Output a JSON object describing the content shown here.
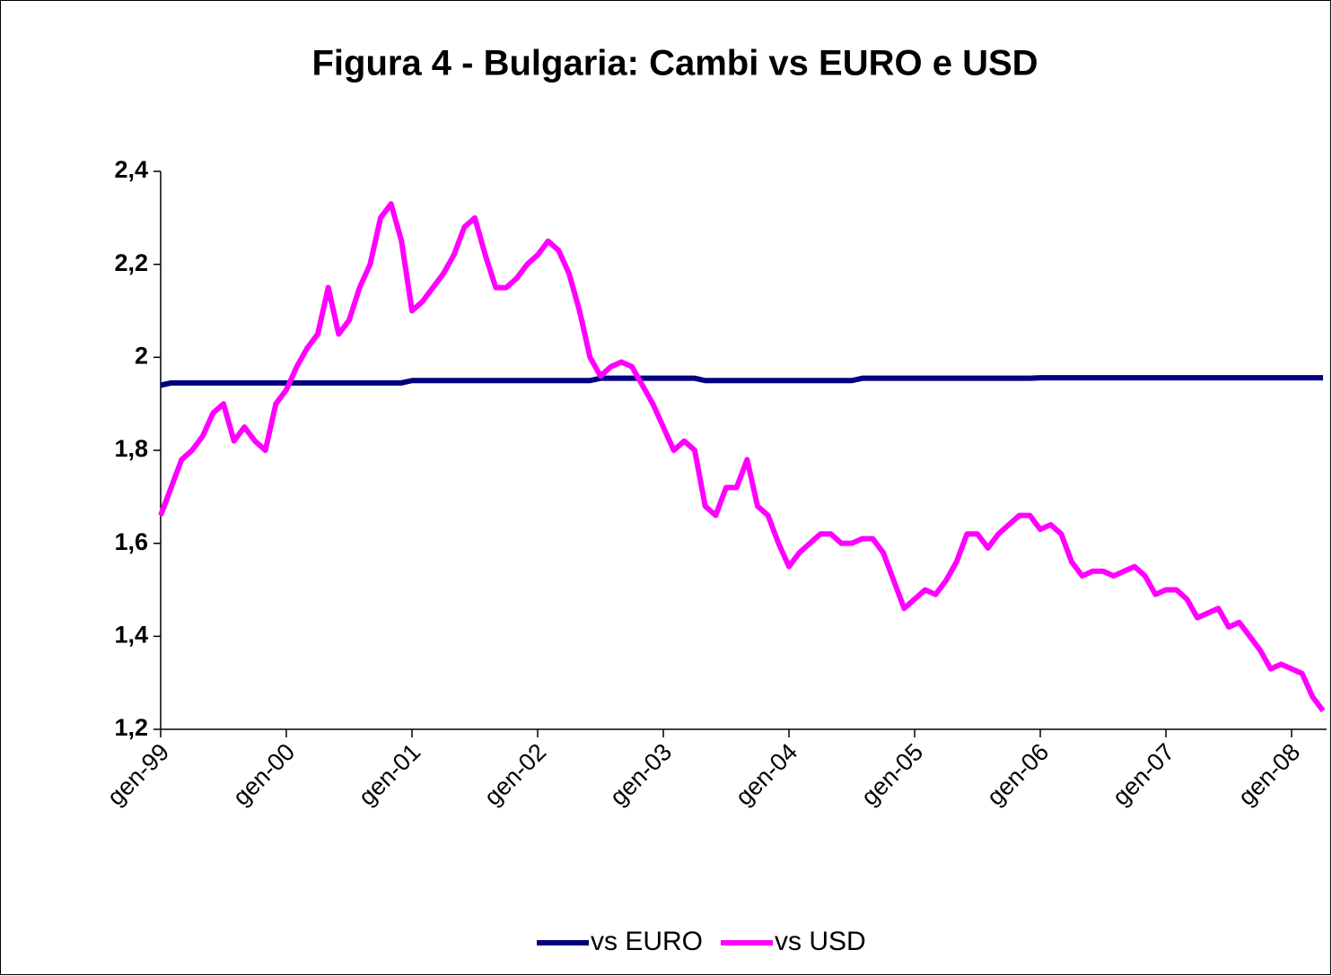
{
  "chart_data": {
    "type": "line",
    "title": "Figura 4 - Bulgaria: Cambi vs EURO e USD",
    "categories": [
      "gen-99",
      null,
      null,
      null,
      null,
      null,
      null,
      null,
      null,
      null,
      null,
      null,
      "gen-00",
      null,
      null,
      null,
      null,
      null,
      null,
      null,
      null,
      null,
      null,
      null,
      "gen-01",
      null,
      null,
      null,
      null,
      null,
      null,
      null,
      null,
      null,
      null,
      null,
      "gen-02",
      null,
      null,
      null,
      null,
      null,
      null,
      null,
      null,
      null,
      null,
      null,
      "gen-03",
      null,
      null,
      null,
      null,
      null,
      null,
      null,
      null,
      null,
      null,
      null,
      "gen-04",
      null,
      null,
      null,
      null,
      null,
      null,
      null,
      null,
      null,
      null,
      null,
      "gen-05",
      null,
      null,
      null,
      null,
      null,
      null,
      null,
      null,
      null,
      null,
      null,
      "gen-06",
      null,
      null,
      null,
      null,
      null,
      null,
      null,
      null,
      null,
      null,
      null,
      "gen-07",
      null,
      null,
      null,
      null,
      null,
      null,
      null,
      null,
      null,
      null,
      null,
      "gen-08",
      null,
      null,
      null
    ],
    "series": [
      {
        "name": "vs EURO",
        "color": "#000080",
        "values": [
          1.94,
          1.945,
          1.945,
          1.945,
          1.945,
          1.945,
          1.945,
          1.945,
          1.945,
          1.945,
          1.945,
          1.945,
          1.945,
          1.945,
          1.945,
          1.945,
          1.945,
          1.945,
          1.945,
          1.945,
          1.945,
          1.945,
          1.945,
          1.945,
          1.95,
          1.95,
          1.95,
          1.95,
          1.95,
          1.95,
          1.95,
          1.95,
          1.95,
          1.95,
          1.95,
          1.95,
          1.95,
          1.95,
          1.95,
          1.95,
          1.95,
          1.95,
          1.955,
          1.955,
          1.955,
          1.955,
          1.955,
          1.955,
          1.955,
          1.955,
          1.955,
          1.955,
          1.95,
          1.95,
          1.95,
          1.95,
          1.95,
          1.95,
          1.95,
          1.95,
          1.95,
          1.95,
          1.95,
          1.95,
          1.95,
          1.95,
          1.95,
          1.955,
          1.955,
          1.955,
          1.955,
          1.955,
          1.955,
          1.955,
          1.955,
          1.955,
          1.955,
          1.955,
          1.955,
          1.955,
          1.955,
          1.955,
          1.955,
          1.955,
          1.956,
          1.956,
          1.956,
          1.956,
          1.956,
          1.956,
          1.956,
          1.956,
          1.956,
          1.956,
          1.956,
          1.956,
          1.956,
          1.956,
          1.956,
          1.956,
          1.956,
          1.956,
          1.956,
          1.956,
          1.956,
          1.956,
          1.956,
          1.956,
          1.956,
          1.956,
          1.956,
          1.956
        ]
      },
      {
        "name": "vs USD",
        "color": "#ff00ff",
        "values": [
          1.66,
          1.72,
          1.78,
          1.8,
          1.83,
          1.88,
          1.9,
          1.82,
          1.85,
          1.82,
          1.8,
          1.9,
          1.93,
          1.98,
          2.02,
          2.05,
          2.15,
          2.05,
          2.08,
          2.15,
          2.2,
          2.3,
          2.33,
          2.25,
          2.1,
          2.12,
          2.15,
          2.18,
          2.22,
          2.28,
          2.3,
          2.22,
          2.15,
          2.15,
          2.17,
          2.2,
          2.22,
          2.25,
          2.23,
          2.18,
          2.1,
          2.0,
          1.96,
          1.98,
          1.99,
          1.98,
          1.94,
          1.9,
          1.85,
          1.8,
          1.82,
          1.8,
          1.68,
          1.66,
          1.72,
          1.72,
          1.78,
          1.68,
          1.66,
          1.6,
          1.55,
          1.58,
          1.6,
          1.62,
          1.62,
          1.6,
          1.6,
          1.61,
          1.61,
          1.58,
          1.52,
          1.46,
          1.48,
          1.5,
          1.49,
          1.52,
          1.56,
          1.62,
          1.62,
          1.59,
          1.62,
          1.64,
          1.66,
          1.66,
          1.63,
          1.64,
          1.62,
          1.56,
          1.53,
          1.54,
          1.54,
          1.53,
          1.54,
          1.55,
          1.53,
          1.49,
          1.5,
          1.5,
          1.48,
          1.44,
          1.45,
          1.46,
          1.42,
          1.43,
          1.4,
          1.37,
          1.33,
          1.34,
          1.33,
          1.32,
          1.27,
          1.24
        ]
      }
    ],
    "ylim": [
      1.2,
      2.4
    ],
    "yticks": [
      {
        "value": 1.2,
        "label": "1,2"
      },
      {
        "value": 1.4,
        "label": "1,4"
      },
      {
        "value": 1.6,
        "label": "1,6"
      },
      {
        "value": 1.8,
        "label": "1,8"
      },
      2,
      {
        "value": 2.2,
        "label": "2,2"
      },
      {
        "value": 2.4,
        "label": "2,4"
      }
    ],
    "legend": "bottom"
  }
}
